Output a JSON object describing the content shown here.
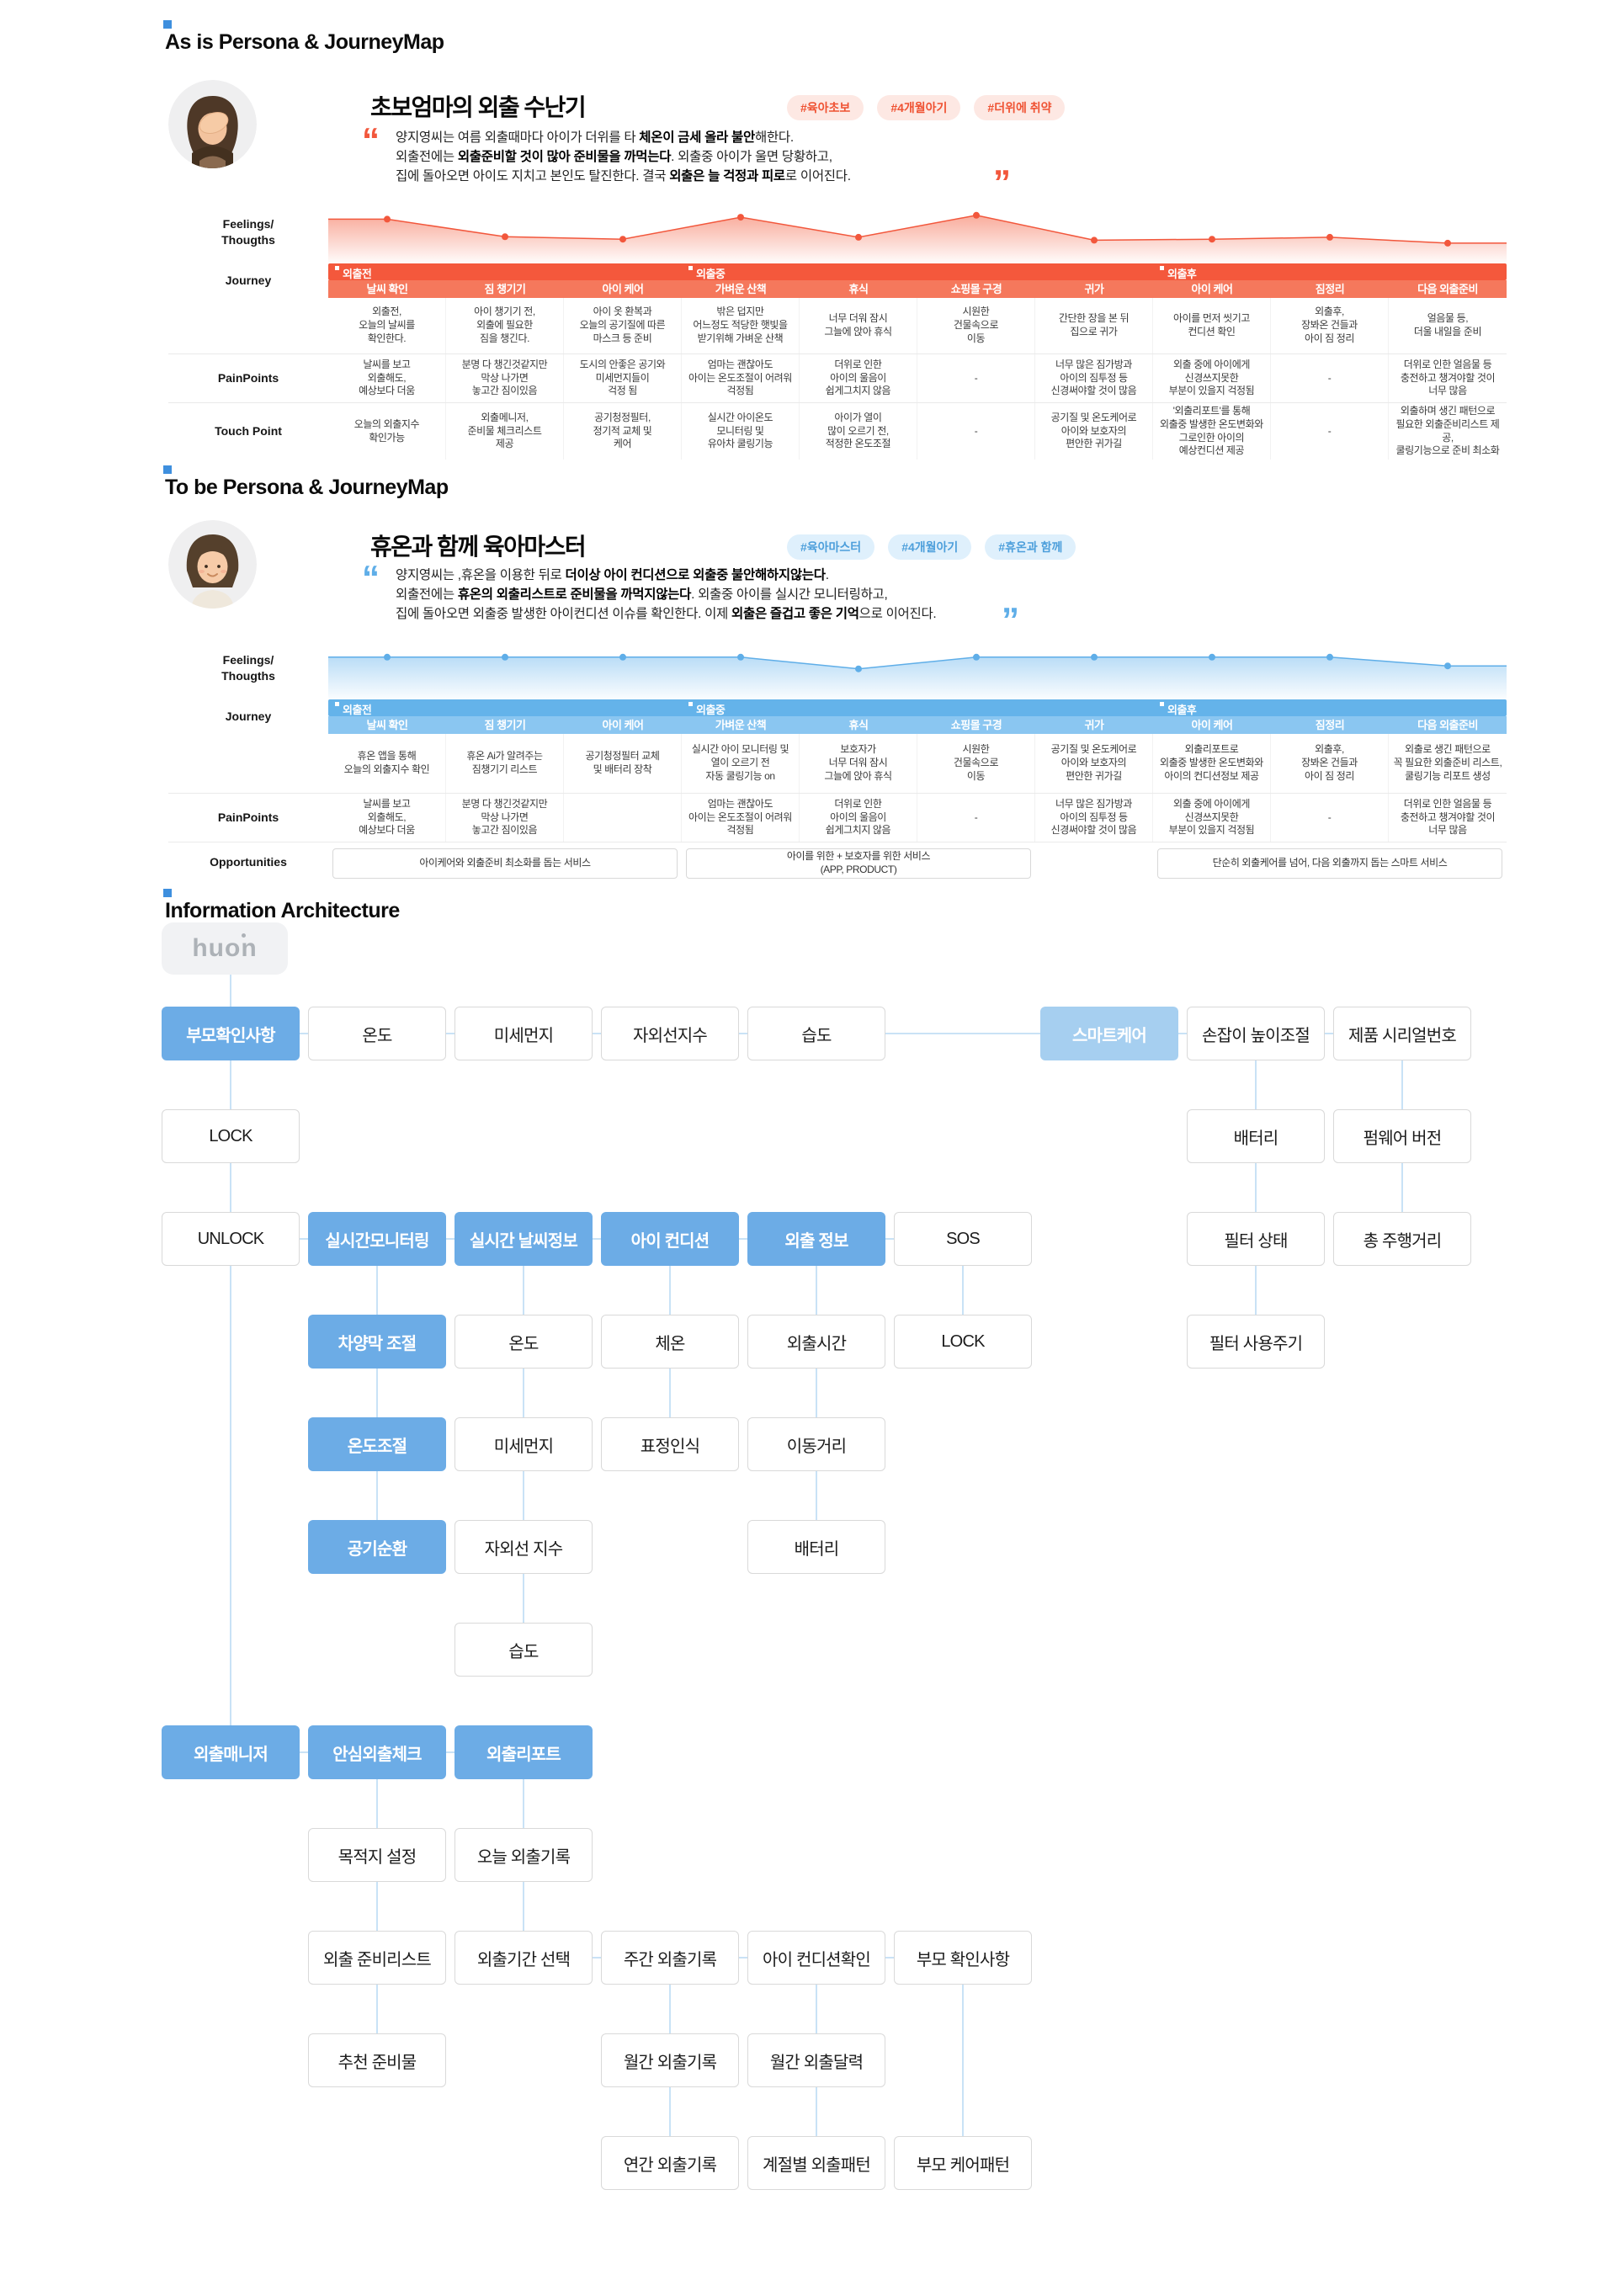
{
  "asis": {
    "header": "As is Persona & JourneyMap",
    "accent": "#F2573C",
    "bar_color": "#F4583C",
    "subbar_color": "#F5785C",
    "persona": {
      "title": "초보엄마의 외출 수난기",
      "tags": [
        "#육아초보",
        "#4개월아기",
        "#더위에 취약"
      ],
      "quote_lines": [
        [
          [
            "양지영씨는 여름 외출때마다 아이가 더위를 타 ",
            0
          ],
          [
            "체온이 금세 올라 불안",
            1
          ],
          [
            "해한다.",
            0
          ]
        ],
        [
          [
            "외출전에는 ",
            0
          ],
          [
            "외출준비할 것이 많아 준비물을 까먹는다",
            1
          ],
          [
            ". 외출중 아이가 울면 당황하고,",
            0
          ]
        ],
        [
          [
            "집에 돌아오면 아이도 지치고 본인도 탈진한다. 결국 ",
            0
          ],
          [
            "외출은 늘 걱정과 피로",
            1
          ],
          [
            "로 이어진다.",
            0
          ]
        ]
      ]
    },
    "journey": {
      "row_labels": {
        "feelings": "Feelings/\nThougths",
        "journey": "Journey",
        "pain": "PainPoints",
        "touch": "Touch Point"
      },
      "stages": [
        {
          "label": "외출전",
          "col": 0
        },
        {
          "label": "외출중",
          "col": 3
        },
        {
          "label": "외출후",
          "col": 7
        }
      ],
      "columns": [
        "날씨 확인",
        "짐 챙기기",
        "아이 케어",
        "가벼운 산책",
        "휴식",
        "쇼핑몰 구경",
        "귀가",
        "아이 케어",
        "짐정리",
        "다음 외출준비"
      ],
      "descriptions": [
        "외출전,\n오늘의 날씨를\n확인한다.",
        "아이 챙기기 전,\n외출에 필요한\n짐을 챙긴다.",
        "아이 옷 환복과\n오늘의 공기질에 따른\n마스크 등 준비",
        "밖은 덥지만\n어느정도 적당한 햇빛을\n받기위해 가벼운 산책",
        "너무 더워 잠시\n그늘에 앉아 휴식",
        "시원한\n건물속으로\n이동",
        "간단한 장을 본 뒤\n집으로 귀가",
        "아이를 먼저 씻기고\n컨디션 확인",
        "외출후,\n장봐온 건들과\n아이 짐 정리",
        "얼음물 등,\n더울 내일을 준비"
      ],
      "painpoints": [
        "날씨를 보고\n외출해도,\n예상보다 더움",
        "분명 다 챙긴것같지만\n막상 나가면\n놓고간 짐이있음",
        "도시의 안좋은 공기와\n미세먼지들이\n걱정 됨",
        "엄마는 괜찮아도\n아이는 온도조절이 어려워\n걱정됨",
        "더위로 인한\n아이의 울음이\n쉽게그치지 않음",
        "-",
        "너무 많은 짐가방과\n아이의 짐투정 등\n신경써야할 것이 많음",
        "외출 중에 아이에게\n신경쓰지못한\n부분이 있을지 걱정됨",
        "-",
        "더위로 인한 얼음물 등\n충전하고 챙겨야할 것이\n너무 많음"
      ],
      "touchpoints": [
        "오늘의 외출지수\n확인가능",
        "외출메니저,\n준비물 체크리스트\n제공",
        "공기청정필터,\n정기적 교체 및\n케어",
        "실시간 아이온도\n모니터링 및\n유아차 쿨링기능",
        "아이가 열이\n많이 오르기 전,\n적정한 온도조절",
        "-",
        "공기질 및 온도케어로\n아이와 보호자의\n편안한 귀가길",
        "'외출리포트'를 통해\n외출중 발생한 온도변화와\n그로인한 아이의\n예상컨디션 제공",
        "-",
        "외출하며 생긴 패턴으로\n필요한 외출준비리스트 제공,\n쿨링기능으로 준비 최소화"
      ],
      "chart": {
        "type": "line-area",
        "values": [
          82,
          46,
          41,
          86,
          45,
          90,
          39,
          41,
          45,
          33
        ],
        "value_range": [
          0,
          100
        ]
      }
    }
  },
  "tobe": {
    "header": "To be Persona & JourneyMap",
    "accent": "#5FAEE8",
    "bar_color": "#64B3EA",
    "subbar_color": "#8AC6F1",
    "persona": {
      "title": "휴온과 함께 육아마스터",
      "tags": [
        "#육아마스터",
        "#4개월아기",
        "#휴온과 함께"
      ],
      "quote_lines": [
        [
          [
            "양지영씨는 ,휴온을 이용한 뒤로 ",
            0
          ],
          [
            "더이상 아이 컨디션으로 외출중 불안해하지않는다",
            1
          ],
          [
            ".",
            0
          ]
        ],
        [
          [
            "외출전에는 ",
            0
          ],
          [
            "휴온의 외출리스트로 준비물을 까먹지않는다",
            1
          ],
          [
            ". 외출중 아이를 실시간 모니터링하고,",
            0
          ]
        ],
        [
          [
            "집에 돌아오면 외출중 발생한 아이컨디션 이슈를 확인한다. 이제 ",
            0
          ],
          [
            "외출은 즐겁고 좋은 기억",
            1
          ],
          [
            "으로 이어진다.",
            0
          ]
        ]
      ]
    },
    "journey": {
      "row_labels": {
        "feelings": "Feelings/\nThougths",
        "journey": "Journey",
        "pain": "PainPoints",
        "opp": "Opportunities"
      },
      "stages": [
        {
          "label": "외출전",
          "col": 0
        },
        {
          "label": "외출중",
          "col": 3
        },
        {
          "label": "외출후",
          "col": 7
        }
      ],
      "columns": [
        "날씨 확인",
        "짐 챙기기",
        "아이 케어",
        "가벼운 산책",
        "휴식",
        "쇼핑몰 구경",
        "귀가",
        "아이 케어",
        "짐정리",
        "다음 외출준비"
      ],
      "descriptions": [
        "휴온 앱을 통해\n오늘의 외출지수 확인",
        "휴온 Ai가 알려주는\n짐챙기기 리스트",
        "공기청정필터 교체\n및 배터리 장착",
        "실시간 아이 모니터링 및\n열이 오르기 전\n자동 쿨링기능 on",
        "보호자가\n너무 더워 잠시\n그늘에 앉아 휴식",
        "시원한\n건물속으로\n이동",
        "공기질 및 온도케어로\n아이와 보호자의\n편안한 귀가길",
        "외출리포트로\n외출중 발생한 온도변화와\n아이의 컨디션정보 제공",
        "외출후,\n장봐온 건들과\n아이 짐 정리",
        "외출로 생긴 패턴으로\n꼭 필요한 외출준비 리스트,\n쿨링기능 리포트 생성"
      ],
      "painpoints": [
        "날씨를 보고\n외출해도,\n예상보다 더움",
        "분명 다 챙긴것같지만\n막상 나가면\n놓고간 짐이있음",
        "",
        "엄마는 괜찮아도\n아이는 온도조절이 어려워\n걱정됨",
        "더위로 인한\n아이의 울음이\n쉽게그치지 않음",
        "-",
        "너무 많은 짐가방과\n아이의 짐투정 등\n신경써야할 것이 많음",
        "외출 중에 아이에게\n신경쓰지못한\n부분이 있을지 걱정됨",
        "-",
        "더위로 인한 얼음물 등\n충전하고 챙겨야할 것이\n너무 많음"
      ],
      "opportunities": [
        {
          "text": "아이케어와 외출준비 최소화를 돕는 서비스",
          "start": 0,
          "span": 3
        },
        {
          "text": "아이를 위한 + 보호자를 위한 서비스\n(APP, PRODUCT)",
          "start": 3,
          "span": 3
        },
        {
          "text": "단순히 외출케어를 넘어, 다음 외출까지 돕는 스마트 서비스",
          "start": 7,
          "span": 3
        }
      ],
      "chart": {
        "type": "line-area",
        "values": [
          78,
          78,
          78,
          78,
          54,
          78,
          78,
          78,
          78,
          60
        ],
        "value_range": [
          0,
          100
        ]
      }
    }
  },
  "ia": {
    "header": "Information Architecture",
    "logo": "huon",
    "node_blue": "#6CACE6",
    "node_light_blue": "#A6CFF0",
    "connector_color": "#C9E2F6",
    "nodes": [
      {
        "label": "부모확인사항",
        "c": 0,
        "r": 0,
        "s": "blue"
      },
      {
        "label": "온도",
        "c": 1,
        "r": 0
      },
      {
        "label": "미세먼지",
        "c": 2,
        "r": 0
      },
      {
        "label": "자외선지수",
        "c": 3,
        "r": 0
      },
      {
        "label": "습도",
        "c": 4,
        "r": 0
      },
      {
        "label": "스마트케어",
        "c": 6,
        "r": 0,
        "s": "light"
      },
      {
        "label": "손잡이 높이조절",
        "c": 7,
        "r": 0
      },
      {
        "label": "제품 시리얼번호",
        "c": 8,
        "r": 0
      },
      {
        "label": "LOCK",
        "c": 0,
        "r": 1
      },
      {
        "label": "배터리",
        "c": 7,
        "r": 1
      },
      {
        "label": "펌웨어 버전",
        "c": 8,
        "r": 1
      },
      {
        "label": "UNLOCK",
        "c": 0,
        "r": 2
      },
      {
        "label": "실시간모니터링",
        "c": 1,
        "r": 2,
        "s": "blue"
      },
      {
        "label": "실시간 날씨정보",
        "c": 2,
        "r": 2,
        "s": "blue"
      },
      {
        "label": "아이 컨디션",
        "c": 3,
        "r": 2,
        "s": "blue"
      },
      {
        "label": "외출 정보",
        "c": 4,
        "r": 2,
        "s": "blue"
      },
      {
        "label": "SOS",
        "c": 5,
        "r": 2
      },
      {
        "label": "필터 상태",
        "c": 7,
        "r": 2
      },
      {
        "label": "총 주행거리",
        "c": 8,
        "r": 2
      },
      {
        "label": "차양막 조절",
        "c": 1,
        "r": 3,
        "s": "blue"
      },
      {
        "label": "온도",
        "c": 2,
        "r": 3
      },
      {
        "label": "체온",
        "c": 3,
        "r": 3
      },
      {
        "label": "외출시간",
        "c": 4,
        "r": 3
      },
      {
        "label": "LOCK",
        "c": 5,
        "r": 3
      },
      {
        "label": "필터 사용주기",
        "c": 7,
        "r": 3
      },
      {
        "label": "온도조절",
        "c": 1,
        "r": 4,
        "s": "blue"
      },
      {
        "label": "미세먼지",
        "c": 2,
        "r": 4
      },
      {
        "label": "표정인식",
        "c": 3,
        "r": 4
      },
      {
        "label": "이동거리",
        "c": 4,
        "r": 4
      },
      {
        "label": "공기순환",
        "c": 1,
        "r": 5,
        "s": "blue"
      },
      {
        "label": "자외선 지수",
        "c": 2,
        "r": 5
      },
      {
        "label": "배터리",
        "c": 4,
        "r": 5
      },
      {
        "label": "습도",
        "c": 2,
        "r": 6
      },
      {
        "label": "외출매니저",
        "c": 0,
        "r": 7,
        "s": "blue"
      },
      {
        "label": "안심외출체크",
        "c": 1,
        "r": 7,
        "s": "blue"
      },
      {
        "label": "외출리포트",
        "c": 2,
        "r": 7,
        "s": "blue"
      },
      {
        "label": "목적지 설정",
        "c": 1,
        "r": 8
      },
      {
        "label": "오늘 외출기록",
        "c": 2,
        "r": 8
      },
      {
        "label": "외출 준비리스트",
        "c": 1,
        "r": 9
      },
      {
        "label": "외출기간 선택",
        "c": 2,
        "r": 9
      },
      {
        "label": "주간 외출기록",
        "c": 3,
        "r": 9
      },
      {
        "label": "아이 컨디션확인",
        "c": 4,
        "r": 9
      },
      {
        "label": "부모 확인사항",
        "c": 5,
        "r": 9
      },
      {
        "label": "추천 준비물",
        "c": 1,
        "r": 10
      },
      {
        "label": "월간 외출기록",
        "c": 3,
        "r": 10
      },
      {
        "label": "월간 외출달력",
        "c": 4,
        "r": 10
      },
      {
        "label": "연간 외출기록",
        "c": 3,
        "r": 11
      },
      {
        "label": "계절별 외출패턴",
        "c": 4,
        "r": 11
      },
      {
        "label": "부모 케어패턴",
        "c": 5,
        "r": 11
      }
    ]
  }
}
